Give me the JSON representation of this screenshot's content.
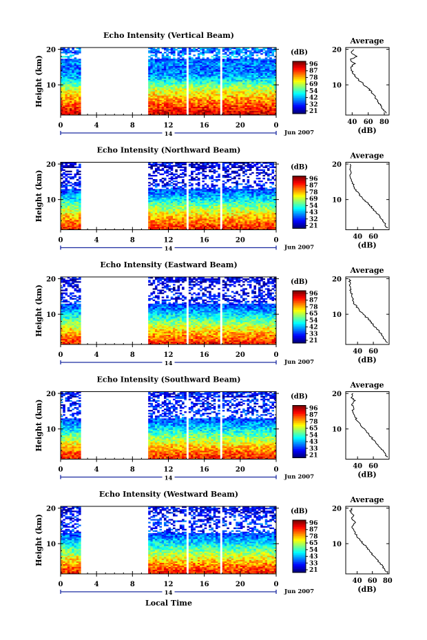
{
  "figure": {
    "xaxis_label": "Local Time"
  },
  "chart_data": [
    {
      "type": "heatmap",
      "title": "Echo Intensity (Vertical Beam)",
      "ylabel": "Height (km)",
      "x_ticks": [
        "0",
        "4",
        "8",
        "12",
        "16",
        "20",
        "0"
      ],
      "y_ticks": [
        "10",
        "20"
      ],
      "date_marker": "14",
      "date_label": "Jun 2007",
      "colorbar_title": "(dB)",
      "colorbar_ticks": [
        "96",
        "87",
        "78",
        "69",
        "54",
        "42",
        "32",
        "21"
      ],
      "xlim": [
        0,
        24
      ],
      "ylim": [
        1.5,
        20.5
      ],
      "data_gaps_hours": [
        [
          2.2,
          9.7
        ],
        [
          14.0,
          14.3
        ],
        [
          17.8,
          18.1
        ]
      ],
      "average_title": "Average",
      "average_xlabel": "(dB)",
      "average_xticks": [
        "40",
        "60",
        "80"
      ],
      "average_yticks": [
        "10",
        "20"
      ],
      "average_xlim": [
        32,
        86
      ],
      "average_profile": {
        "height_km": [
          2,
          3,
          4,
          5,
          6,
          7,
          8,
          9,
          10,
          11,
          12,
          13,
          14,
          15,
          16,
          17,
          18,
          19,
          20
        ],
        "db": [
          82,
          79,
          76,
          73,
          70,
          67,
          64,
          60,
          55,
          50,
          45,
          42,
          40,
          39,
          43,
          37,
          45,
          38,
          41
        ]
      }
    },
    {
      "type": "heatmap",
      "title": "Echo Intensity (Northward Beam)",
      "ylabel": "Height (km)",
      "x_ticks": [
        "0",
        "4",
        "8",
        "12",
        "16",
        "20",
        "0"
      ],
      "y_ticks": [
        "10",
        "20"
      ],
      "date_marker": "14",
      "date_label": "Jun 2007",
      "colorbar_title": "(dB)",
      "colorbar_ticks": [
        "96",
        "87",
        "78",
        "69",
        "54",
        "43",
        "32",
        "21"
      ],
      "xlim": [
        0,
        24
      ],
      "ylim": [
        1.5,
        20.5
      ],
      "data_gaps_hours": [
        [
          2.2,
          9.7
        ],
        [
          14.0,
          14.3
        ],
        [
          17.8,
          18.1
        ]
      ],
      "average_title": "Average",
      "average_xlabel": "(dB)",
      "average_xticks": [
        "40",
        "60"
      ],
      "average_yticks": [
        "10",
        "20"
      ],
      "average_xlim": [
        25,
        80
      ],
      "average_profile": {
        "height_km": [
          2,
          3,
          4,
          5,
          6,
          7,
          8,
          9,
          10,
          11,
          12,
          13,
          14,
          15,
          16,
          17,
          18,
          19,
          20
        ],
        "db": [
          78,
          75,
          72,
          69,
          65,
          61,
          57,
          53,
          48,
          44,
          40,
          37,
          35,
          33,
          32,
          31,
          31,
          30,
          31
        ]
      }
    },
    {
      "type": "heatmap",
      "title": "Echo Intensity (Eastward Beam)",
      "ylabel": "Height (km)",
      "x_ticks": [
        "0",
        "4",
        "8",
        "12",
        "16",
        "20",
        "0"
      ],
      "y_ticks": [
        "10",
        "20"
      ],
      "date_marker": "14",
      "date_label": "Jun 2007",
      "colorbar_title": "(dB)",
      "colorbar_ticks": [
        "96",
        "87",
        "78",
        "65",
        "54",
        "42",
        "33",
        "21"
      ],
      "xlim": [
        0,
        24
      ],
      "ylim": [
        1.5,
        20.5
      ],
      "data_gaps_hours": [
        [
          2.2,
          9.7
        ],
        [
          14.0,
          14.3
        ],
        [
          17.8,
          18.1
        ]
      ],
      "average_title": "Average",
      "average_xlabel": "(dB)",
      "average_xticks": [
        "40",
        "60"
      ],
      "average_yticks": [
        "10",
        "20"
      ],
      "average_xlim": [
        25,
        80
      ],
      "average_profile": {
        "height_km": [
          2,
          3,
          4,
          5,
          6,
          7,
          8,
          9,
          10,
          11,
          12,
          13,
          14,
          15,
          16,
          17,
          18,
          19,
          20
        ],
        "db": [
          78,
          74,
          71,
          68,
          64,
          60,
          56,
          52,
          47,
          43,
          39,
          36,
          34,
          33,
          32,
          31,
          31,
          30,
          31
        ]
      }
    },
    {
      "type": "heatmap",
      "title": "Echo Intensity (Southward Beam)",
      "ylabel": "Height (km)",
      "x_ticks": [
        "0",
        "4",
        "8",
        "12",
        "16",
        "20",
        "0"
      ],
      "y_ticks": [
        "10",
        "20"
      ],
      "date_marker": "14",
      "date_label": "Jun 2007",
      "colorbar_title": "(dB)",
      "colorbar_ticks": [
        "96",
        "87",
        "78",
        "65",
        "54",
        "43",
        "33",
        "21"
      ],
      "xlim": [
        0,
        24
      ],
      "ylim": [
        1.5,
        20.5
      ],
      "data_gaps_hours": [
        [
          2.2,
          9.7
        ],
        [
          14.0,
          14.3
        ],
        [
          17.8,
          18.1
        ]
      ],
      "average_title": "Average",
      "average_xlabel": "(dB)",
      "average_xticks": [
        "40",
        "60"
      ],
      "average_yticks": [
        "10",
        "20"
      ],
      "average_xlim": [
        25,
        80
      ],
      "average_profile": {
        "height_km": [
          2,
          3,
          4,
          5,
          6,
          7,
          8,
          9,
          10,
          11,
          12,
          13,
          14,
          15,
          16,
          17,
          18,
          19,
          20
        ],
        "db": [
          78,
          75,
          72,
          68,
          64,
          60,
          56,
          52,
          48,
          44,
          40,
          38,
          36,
          34,
          35,
          33,
          36,
          32,
          34
        ]
      }
    },
    {
      "type": "heatmap",
      "title": "Echo Intensity (Westward Beam)",
      "ylabel": "Height (km)",
      "x_ticks": [
        "0",
        "4",
        "8",
        "12",
        "16",
        "20",
        "0"
      ],
      "y_ticks": [
        "10",
        "20"
      ],
      "date_marker": "14",
      "date_label": "Jun 2007",
      "colorbar_title": "(dB)",
      "colorbar_ticks": [
        "96",
        "87",
        "78",
        "65",
        "54",
        "43",
        "33",
        "21"
      ],
      "xlim": [
        0,
        24
      ],
      "ylim": [
        1.5,
        20.5
      ],
      "data_gaps_hours": [
        [
          2.2,
          9.7
        ],
        [
          14.0,
          14.3
        ],
        [
          17.8,
          18.1
        ]
      ],
      "average_title": "Average",
      "average_xlabel": "(dB)",
      "average_xticks": [
        "40",
        "60",
        "80"
      ],
      "average_yticks": [
        "10",
        "20"
      ],
      "average_xlim": [
        25,
        82
      ],
      "average_profile": {
        "height_km": [
          2,
          3,
          4,
          5,
          6,
          7,
          8,
          9,
          10,
          11,
          12,
          13,
          14,
          15,
          16,
          17,
          18,
          19,
          20
        ],
        "db": [
          78,
          75,
          72,
          68,
          64,
          60,
          56,
          52,
          48,
          44,
          40,
          37,
          35,
          33,
          38,
          32,
          36,
          31,
          33
        ]
      }
    }
  ]
}
